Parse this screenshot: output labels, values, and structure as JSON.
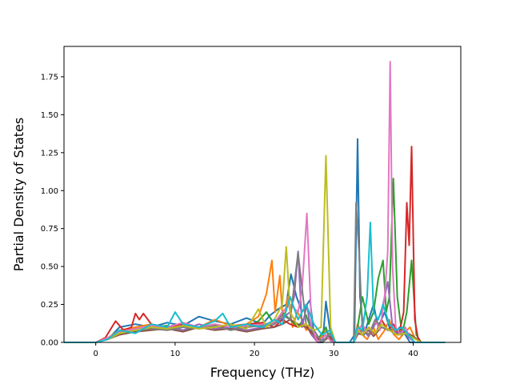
{
  "chart_data": {
    "type": "line",
    "title": "",
    "xlabel": "Frequency (THz)",
    "ylabel": "Partial Density of States",
    "xlim": [
      -4.0,
      46.0
    ],
    "ylim": [
      0.0,
      1.95
    ],
    "xticks": [
      0,
      10,
      20,
      30,
      40
    ],
    "yticks": [
      0.0,
      0.25,
      0.5,
      0.75,
      1.0,
      1.25,
      1.5,
      1.75
    ],
    "xtick_labels": [
      "0",
      "10",
      "20",
      "30",
      "40"
    ],
    "ytick_labels": [
      "0.00",
      "0.25",
      "0.50",
      "0.75",
      "1.00",
      "1.25",
      "1.50",
      "1.75"
    ],
    "grid": false,
    "legend": "none",
    "series": [
      {
        "color": "#1f77b4",
        "x": [
          -4,
          0,
          1.5,
          3,
          5,
          7,
          9,
          11,
          13,
          15,
          17,
          19,
          21,
          22,
          23,
          24,
          24.6,
          25.3,
          26,
          27,
          27.5,
          28,
          28.6,
          29,
          29.6,
          30.2,
          31,
          32,
          32.6,
          33,
          33.3,
          33.8,
          34.4,
          35,
          35.6,
          36.4,
          37,
          37.6,
          38.3,
          39,
          39.6,
          40.2,
          41,
          44
        ],
        "y": [
          0,
          0,
          0.02,
          0.1,
          0.12,
          0.1,
          0.13,
          0.11,
          0.17,
          0.14,
          0.12,
          0.16,
          0.12,
          0.18,
          0.22,
          0.25,
          0.45,
          0.3,
          0.2,
          0.28,
          0.05,
          0,
          0,
          0.27,
          0.05,
          0,
          0,
          0,
          0.05,
          1.34,
          0.3,
          0.05,
          0.15,
          0.25,
          0.1,
          0.2,
          0.1,
          0.05,
          0.1,
          0.05,
          0,
          0,
          0,
          0
        ]
      },
      {
        "color": "#ff7f0e",
        "x": [
          -4,
          0,
          1.5,
          3,
          5,
          7,
          9,
          11,
          13,
          15,
          17,
          19,
          20.5,
          21.5,
          22.2,
          22.6,
          23.2,
          23.6,
          24.2,
          24.8,
          25.4,
          26,
          26.5,
          27,
          27.5,
          28,
          29,
          29.6,
          30.2,
          31,
          32.5,
          33,
          33.6,
          34.2,
          35,
          35.6,
          36.4,
          37,
          37.6,
          38.2,
          39,
          39.6,
          40.2,
          41,
          44
        ],
        "y": [
          0,
          0,
          0.03,
          0.08,
          0.1,
          0.12,
          0.09,
          0.13,
          0.1,
          0.15,
          0.11,
          0.12,
          0.17,
          0.32,
          0.54,
          0.2,
          0.44,
          0.12,
          0.3,
          0.1,
          0.2,
          0.15,
          0.08,
          0.12,
          0.05,
          0,
          0.08,
          0.02,
          0,
          0,
          0,
          0.12,
          0.05,
          0.02,
          0.1,
          0.02,
          0.08,
          0.15,
          0.05,
          0.02,
          0.07,
          0.1,
          0.03,
          0,
          0
        ]
      },
      {
        "color": "#2ca02c",
        "x": [
          -4,
          0,
          1.5,
          3,
          5,
          7,
          9,
          11,
          13,
          15,
          17,
          19,
          20.5,
          21.5,
          22.5,
          23.5,
          24.5,
          25.5,
          26.5,
          27.2,
          28,
          29,
          29.5,
          30.2,
          31,
          32.5,
          33,
          33.6,
          34.4,
          35,
          35.6,
          36.2,
          36.6,
          37,
          37.5,
          38,
          38.6,
          39.2,
          39.8,
          40.4,
          41,
          44
        ],
        "y": [
          0,
          0,
          0.02,
          0.07,
          0.09,
          0.1,
          0.11,
          0.08,
          0.1,
          0.12,
          0.09,
          0.1,
          0.14,
          0.2,
          0.12,
          0.2,
          0.15,
          0.1,
          0.18,
          0.08,
          0.02,
          0.1,
          0.02,
          0,
          0,
          0,
          0.1,
          0.3,
          0.12,
          0.2,
          0.42,
          0.54,
          0.2,
          0.3,
          1.08,
          0.3,
          0.05,
          0.2,
          0.54,
          0.05,
          0,
          0
        ]
      },
      {
        "color": "#d62728",
        "x": [
          -4,
          0,
          1.2,
          2.5,
          3.5,
          4.5,
          5,
          5.5,
          6,
          7,
          8,
          9,
          11,
          13,
          15,
          17,
          19,
          21,
          22.5,
          23.5,
          24.5,
          25.5,
          26.5,
          27.2,
          28,
          29,
          29.6,
          30.2,
          31,
          32.5,
          33,
          33.6,
          34.4,
          35.2,
          36,
          36.8,
          37.5,
          38.2,
          38.8,
          39.2,
          39.5,
          39.8,
          40.2,
          40.6,
          41,
          44
        ],
        "y": [
          0,
          0,
          0.03,
          0.14,
          0.08,
          0.1,
          0.19,
          0.15,
          0.19,
          0.12,
          0.11,
          0.1,
          0.12,
          0.09,
          0.11,
          0.1,
          0.12,
          0.13,
          0.1,
          0.15,
          0.12,
          0.1,
          0.12,
          0.05,
          0,
          0.05,
          0.02,
          0,
          0,
          0,
          0.08,
          0.05,
          0.1,
          0.05,
          0.15,
          0.08,
          0.12,
          0.05,
          0.2,
          0.92,
          0.64,
          1.29,
          0.15,
          0.03,
          0,
          0
        ]
      },
      {
        "color": "#9467bd",
        "x": [
          -4,
          0,
          1.5,
          3,
          5,
          7,
          9,
          11,
          13,
          15,
          17,
          19,
          21,
          22.5,
          23.5,
          24.5,
          25,
          25.5,
          26,
          26.6,
          27.2,
          28,
          29,
          29.6,
          30.2,
          31,
          32.5,
          33,
          33.6,
          34.4,
          35.2,
          36,
          36.8,
          37.4,
          38,
          38.8,
          39.5,
          40.2,
          41,
          44
        ],
        "y": [
          0,
          0,
          0.02,
          0.06,
          0.08,
          0.09,
          0.1,
          0.08,
          0.12,
          0.09,
          0.1,
          0.08,
          0.1,
          0.12,
          0.16,
          0.2,
          0.3,
          0.6,
          0.1,
          0.25,
          0.05,
          0,
          0.05,
          0.01,
          0,
          0,
          0,
          0.05,
          0.08,
          0.04,
          0.12,
          0.2,
          0.4,
          0.1,
          0.05,
          0.08,
          0.03,
          0,
          0,
          0
        ]
      },
      {
        "color": "#8c564b",
        "x": [
          -4,
          0,
          1.5,
          3,
          5,
          7,
          9,
          11,
          13,
          15,
          17,
          19,
          21,
          22.5,
          23.5,
          24.5,
          25.5,
          26.5,
          27.5,
          28.5,
          29.5,
          30.2,
          31,
          32.5,
          33,
          33.6,
          34.4,
          35,
          36,
          37,
          38,
          39,
          40,
          41,
          44
        ],
        "y": [
          0,
          0,
          0.02,
          0.05,
          0.07,
          0.08,
          0.09,
          0.07,
          0.1,
          0.08,
          0.09,
          0.07,
          0.09,
          0.1,
          0.12,
          0.15,
          0.12,
          0.1,
          0.05,
          0,
          0.04,
          0,
          0,
          0,
          0.06,
          0.05,
          0.08,
          0.04,
          0.1,
          0.08,
          0.05,
          0.07,
          0.04,
          0,
          0
        ]
      },
      {
        "color": "#e377c2",
        "x": [
          -4,
          0,
          1.5,
          3,
          5,
          7,
          9,
          11,
          13,
          15,
          17,
          19,
          21,
          22.5,
          23.5,
          24.5,
          25.5,
          26,
          26.6,
          27.2,
          28,
          29,
          29.6,
          30.2,
          31,
          32.5,
          33,
          33.6,
          34.4,
          35.2,
          35.8,
          36.4,
          36.8,
          37.1,
          37.4,
          37.8,
          38.4,
          39,
          39.6,
          40.2,
          41,
          44
        ],
        "y": [
          0,
          0,
          0.03,
          0.07,
          0.09,
          0.11,
          0.1,
          0.13,
          0.1,
          0.12,
          0.1,
          0.11,
          0.12,
          0.13,
          0.2,
          0.25,
          0.2,
          0.35,
          0.85,
          0.1,
          0,
          0.05,
          0.01,
          0,
          0,
          0,
          0.07,
          0.12,
          0.05,
          0.15,
          0.08,
          0.3,
          0.6,
          1.85,
          0.5,
          0.1,
          0.05,
          0.1,
          0.03,
          0,
          0,
          0
        ]
      },
      {
        "color": "#7f7f7f",
        "x": [
          -4,
          0,
          1.5,
          3,
          5,
          7,
          9,
          11,
          13,
          15,
          17,
          19,
          21,
          22.5,
          23.5,
          24.5,
          25.5,
          26.5,
          27.5,
          28.5,
          29.5,
          30.2,
          31,
          32.5,
          32.8,
          33.2,
          33.6,
          34.4,
          35.2,
          36,
          37,
          38,
          39,
          40,
          41,
          44
        ],
        "y": [
          0,
          0,
          0.02,
          0.06,
          0.08,
          0.09,
          0.08,
          0.1,
          0.09,
          0.11,
          0.08,
          0.1,
          0.11,
          0.12,
          0.18,
          0.15,
          0.59,
          0.12,
          0.08,
          0,
          0.06,
          0,
          0,
          0,
          0.92,
          0.58,
          0.08,
          0.05,
          0.15,
          0.1,
          0.08,
          0.05,
          0.06,
          0.03,
          0,
          0
        ]
      },
      {
        "color": "#bcbd22",
        "x": [
          -4,
          0,
          1.5,
          3,
          5,
          7,
          9,
          11,
          13,
          15,
          17,
          19,
          20.5,
          21.5,
          22.5,
          23.5,
          24,
          24.5,
          25,
          25.5,
          26.5,
          27.5,
          28.4,
          29,
          29.6,
          30.2,
          31,
          32.5,
          33,
          33.6,
          34.4,
          35.2,
          36,
          37,
          38,
          39,
          40,
          41,
          44
        ],
        "y": [
          0,
          0,
          0.02,
          0.06,
          0.08,
          0.1,
          0.09,
          0.11,
          0.09,
          0.1,
          0.12,
          0.09,
          0.22,
          0.1,
          0.15,
          0.25,
          0.63,
          0.2,
          0.15,
          0.1,
          0.12,
          0.08,
          0.1,
          1.23,
          0.1,
          0,
          0,
          0,
          0.08,
          0.05,
          0.1,
          0.06,
          0.12,
          0.08,
          0.05,
          0.06,
          0.03,
          0,
          0
        ]
      },
      {
        "color": "#17becf",
        "x": [
          -4,
          0,
          1.5,
          3,
          5,
          7,
          9,
          10,
          11,
          13,
          15,
          16,
          17,
          19,
          21,
          22.5,
          23.5,
          24.5,
          25.5,
          26.5,
          27.5,
          28.5,
          29.5,
          30.2,
          31,
          32.5,
          33,
          33.6,
          34.2,
          34.6,
          35,
          35.6,
          36.2,
          37,
          37.8,
          38.6,
          39.4,
          40.2,
          41,
          44
        ],
        "y": [
          0,
          0,
          0.02,
          0.08,
          0.06,
          0.12,
          0.1,
          0.2,
          0.12,
          0.1,
          0.14,
          0.19,
          0.1,
          0.12,
          0.1,
          0.15,
          0.12,
          0.3,
          0.15,
          0.25,
          0.12,
          0.05,
          0.08,
          0,
          0,
          0,
          0.1,
          0.08,
          0.3,
          0.79,
          0.2,
          0.15,
          0.25,
          0.12,
          0.08,
          0.1,
          0.05,
          0,
          0,
          0
        ]
      }
    ]
  }
}
